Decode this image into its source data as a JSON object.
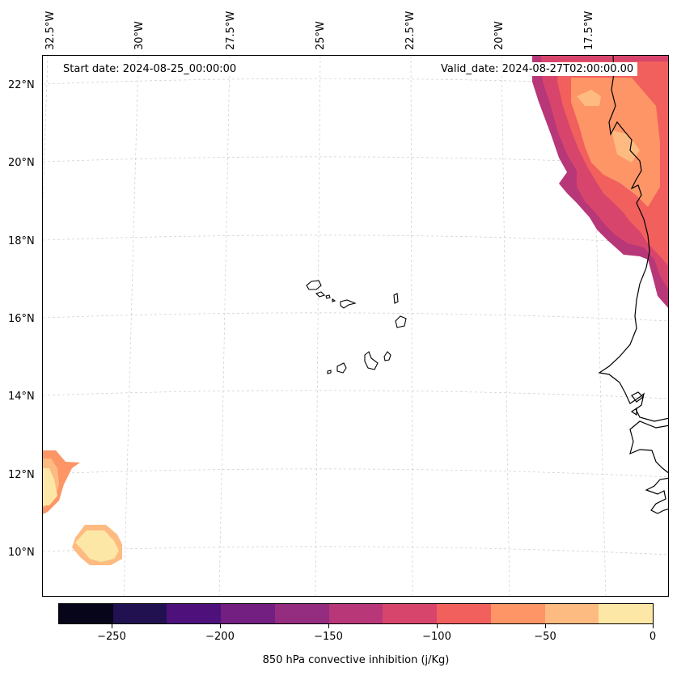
{
  "map": {
    "start_date_label": "Start date: 2024-08-25_00:00:00",
    "valid_date_label": "Valid_date: 2024-08-27T02:00:00.00",
    "longitude_labels": [
      "32.5°W",
      "30°W",
      "27.5°W",
      "25°W",
      "22.5°W",
      "20°W",
      "17.5°W"
    ],
    "latitude_labels": [
      "22°N",
      "20°N",
      "18°N",
      "16°N",
      "14°N",
      "12°N",
      "10°N"
    ],
    "region": "Cape Verde Islands and West African coast (Mauritania, Senegal, Gambia, Guinea-Bissau)"
  },
  "colorbar": {
    "label": "850 hPa convective inhibition (j/Kg)",
    "tick_labels": [
      "−250",
      "−200",
      "−150",
      "−100",
      "−50",
      "0"
    ],
    "range": [
      -275,
      0
    ],
    "step": 25,
    "colors": [
      "#06051a",
      "#221150",
      "#4e117b",
      "#721f81",
      "#942c80",
      "#b73779",
      "#d8456c",
      "#f1605d",
      "#fd9567",
      "#febb81",
      "#fde7a6"
    ]
  }
}
